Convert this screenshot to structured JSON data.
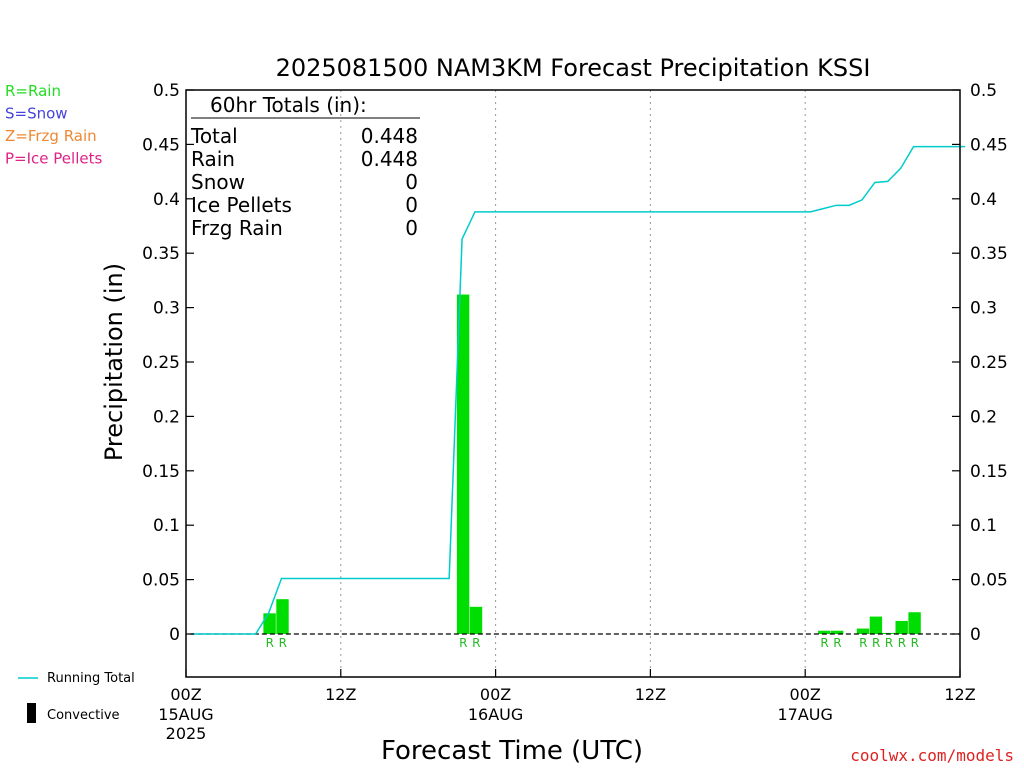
{
  "chart_data": {
    "type": "bar",
    "title": "2025081500 NAM3KM Forecast Precipitation KSSI",
    "xlabel": "Forecast Time (UTC)",
    "ylabel": "Precipitation (in)",
    "ylim": [
      -0.04,
      0.5
    ],
    "xlim_hours": [
      0,
      60
    ],
    "yticks": [
      "0.5",
      "0.45",
      "0.4",
      "0.35",
      "0.3",
      "0.25",
      "0.2",
      "0.15",
      "0.1",
      "0.05",
      "0"
    ],
    "yticks_right": [
      "0.5",
      "0.45",
      "0.4",
      "0.35",
      "0.3",
      "0.25",
      "0.2",
      "0.15",
      "0.1",
      "0.05",
      "0"
    ],
    "ytick_values": [
      0.5,
      0.45,
      0.4,
      0.35,
      0.3,
      0.25,
      0.2,
      0.15,
      0.1,
      0.05,
      0
    ],
    "xticks": [
      {
        "hour": 0,
        "l1": "00Z",
        "l2": "15AUG",
        "l3": "2025"
      },
      {
        "hour": 12,
        "l1": "12Z",
        "l2": "",
        "l3": ""
      },
      {
        "hour": 24,
        "l1": "00Z",
        "l2": "16AUG",
        "l3": ""
      },
      {
        "hour": 36,
        "l1": "12Z",
        "l2": "",
        "l3": ""
      },
      {
        "hour": 48,
        "l1": "00Z",
        "l2": "17AUG",
        "l3": ""
      },
      {
        "hour": 60,
        "l1": "12Z",
        "l2": "",
        "l3": ""
      }
    ],
    "gridlines_hours": [
      12,
      24,
      36,
      48
    ],
    "bars": [
      {
        "hour": 6,
        "value": 0.019,
        "ptype": "R"
      },
      {
        "hour": 7,
        "value": 0.032,
        "ptype": "R"
      },
      {
        "hour": 21,
        "value": 0.312,
        "ptype": "R"
      },
      {
        "hour": 22,
        "value": 0.025,
        "ptype": "R"
      },
      {
        "hour": 49,
        "value": 0.003,
        "ptype": "R"
      },
      {
        "hour": 50,
        "value": 0.003,
        "ptype": "R"
      },
      {
        "hour": 52,
        "value": 0.005,
        "ptype": "R"
      },
      {
        "hour": 53,
        "value": 0.016,
        "ptype": "R"
      },
      {
        "hour": 54,
        "value": 0.001,
        "ptype": "R"
      },
      {
        "hour": 55,
        "value": 0.012,
        "ptype": "R"
      },
      {
        "hour": 56,
        "value": 0.02,
        "ptype": "R"
      }
    ],
    "running_total": {
      "name": "Running Total",
      "x_hours": [
        0,
        1,
        2,
        3,
        4,
        5,
        6,
        7,
        8,
        9,
        10,
        11,
        12,
        13,
        14,
        15,
        16,
        17,
        18,
        19,
        20,
        21,
        22,
        23,
        24,
        25,
        26,
        27,
        28,
        29,
        30,
        31,
        32,
        33,
        34,
        35,
        36,
        37,
        38,
        39,
        40,
        41,
        42,
        43,
        44,
        45,
        46,
        47,
        48,
        49,
        50,
        51,
        52,
        53,
        54,
        55,
        56,
        57,
        58,
        59,
        60
      ],
      "values": [
        0,
        0,
        0,
        0,
        0,
        0,
        0.019,
        0.051,
        0.051,
        0.051,
        0.051,
        0.051,
        0.051,
        0.051,
        0.051,
        0.051,
        0.051,
        0.051,
        0.051,
        0.051,
        0.051,
        0.363,
        0.388,
        0.388,
        0.388,
        0.388,
        0.388,
        0.388,
        0.388,
        0.388,
        0.388,
        0.388,
        0.388,
        0.388,
        0.388,
        0.388,
        0.388,
        0.388,
        0.388,
        0.388,
        0.388,
        0.388,
        0.388,
        0.388,
        0.388,
        0.388,
        0.388,
        0.388,
        0.388,
        0.391,
        0.394,
        0.394,
        0.399,
        0.415,
        0.416,
        0.428,
        0.448,
        0.448,
        0.448,
        0.448,
        0.448
      ]
    },
    "totals_box": {
      "heading": "60hr Totals (in):",
      "rows": [
        {
          "label": "Total",
          "value": "0.448"
        },
        {
          "label": "Rain",
          "value": "0.448"
        },
        {
          "label": "Snow",
          "value": "0"
        },
        {
          "label": "Ice Pellets",
          "value": "0"
        },
        {
          "label": "Frzg Rain",
          "value": "0"
        }
      ]
    },
    "legend": {
      "types": [
        {
          "label": "R=Rain",
          "color": "#22dd22"
        },
        {
          "label": "S=Snow",
          "color": "#4444dd"
        },
        {
          "label": "Z=Frzg Rain",
          "color": "#ee8833"
        },
        {
          "label": "P=Ice Pellets",
          "color": "#dd2288"
        }
      ],
      "running_total_label": "Running Total",
      "convective_label": "Convective"
    },
    "credit": "coolwx.com/models",
    "colors": {
      "bar": "#00dd00",
      "line": "#00cccc",
      "ptype_label": "#22bb22",
      "credit": "#dd2222"
    }
  }
}
